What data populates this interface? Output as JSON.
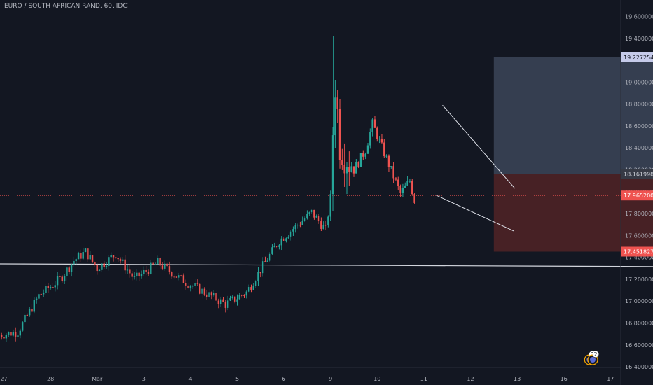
{
  "header": {
    "title": "EURO / SOUTH AFRICAN RAND, 60, IDC"
  },
  "colors": {
    "background": "#131722",
    "up": "#26a69a",
    "down": "#ef5350",
    "axis_text": "#b2b5be",
    "profit_zone": "#3a4255",
    "loss_zone": "#4a2226",
    "current_price_line": "#ef5350"
  },
  "chart_data": {
    "type": "candlestick",
    "title": "EURO / SOUTH AFRICAN RAND, 60, IDC",
    "x_tick_labels": [
      "27",
      "28",
      "Mar",
      "3",
      "4",
      "5",
      "6",
      "9",
      "10",
      "11",
      "12",
      "13",
      "16",
      "17"
    ],
    "y_tick_labels": [
      "19.600000",
      "19.400000",
      "19.200000",
      "19.000000",
      "18.800000",
      "18.600000",
      "18.400000",
      "18.200000",
      "18.000000",
      "17.800000",
      "17.600000",
      "17.400000",
      "17.200000",
      "17.000000",
      "16.800000",
      "16.600000",
      "16.400000"
    ],
    "y_range": [
      16.33,
      19.75
    ],
    "price_tags": [
      {
        "value": "19.227254",
        "price": 19.227254,
        "bg": "#c5cae9",
        "fg": "#131722"
      },
      {
        "value": "18.161998",
        "price": 18.161998,
        "bg": "#363a45",
        "fg": "#d1d4dc"
      },
      {
        "value": "17.965200",
        "price": 17.9652,
        "bg": "#ef5350",
        "fg": "#ffffff"
      },
      {
        "value": "17.451827",
        "price": 17.451827,
        "bg": "#ef5350",
        "fg": "#ffffff"
      }
    ],
    "position": {
      "type": "long",
      "entry": 18.161998,
      "target": 19.227254,
      "stop": 17.451827,
      "start_day": 10.5,
      "end_day": 15.7
    },
    "current_price": 17.9652,
    "support_line": {
      "start": [
        -0.1,
        17.34
      ],
      "end": [
        17.25,
        17.31
      ]
    },
    "wedge_upper": {
      "start": [
        9.4,
        18.79
      ],
      "end": [
        10.95,
        18.03
      ]
    },
    "wedge_lower": {
      "start": [
        9.25,
        17.97
      ],
      "end": [
        10.93,
        17.64
      ]
    },
    "event_badges": [
      {
        "day": 12.55,
        "label": "2"
      },
      {
        "day": 12.62,
        "label": "2"
      },
      {
        "day": 16.55,
        "label": ""
      }
    ],
    "price_path": [
      {
        "day": -0.1,
        "price": 16.69
      },
      {
        "day": 0.3,
        "price": 16.72
      },
      {
        "day": 0.75,
        "price": 17.05
      },
      {
        "day": 1.2,
        "price": 17.2
      },
      {
        "day": 1.5,
        "price": 17.37
      },
      {
        "day": 1.75,
        "price": 17.45
      },
      {
        "day": 2.0,
        "price": 17.3
      },
      {
        "day": 2.4,
        "price": 17.43
      },
      {
        "day": 2.8,
        "price": 17.2
      },
      {
        "day": 3.3,
        "price": 17.35
      },
      {
        "day": 3.8,
        "price": 17.2
      },
      {
        "day": 4.3,
        "price": 17.08
      },
      {
        "day": 4.75,
        "price": 16.97
      },
      {
        "day": 5.2,
        "price": 17.08
      },
      {
        "day": 5.55,
        "price": 17.32
      },
      {
        "day": 5.9,
        "price": 17.55
      },
      {
        "day": 6.3,
        "price": 17.7
      },
      {
        "day": 6.6,
        "price": 17.81
      },
      {
        "day": 6.9,
        "price": 17.65
      },
      {
        "day": 7.02,
        "price": 18.0
      },
      {
        "day": 7.08,
        "price": 19.1
      },
      {
        "day": 7.2,
        "price": 18.45
      },
      {
        "day": 7.5,
        "price": 18.2
      },
      {
        "day": 7.75,
        "price": 18.38
      },
      {
        "day": 7.9,
        "price": 18.62
      },
      {
        "day": 8.2,
        "price": 18.3
      },
      {
        "day": 8.5,
        "price": 17.98
      },
      {
        "day": 8.7,
        "price": 18.1
      },
      {
        "day": 8.8,
        "price": 17.92
      }
    ]
  }
}
